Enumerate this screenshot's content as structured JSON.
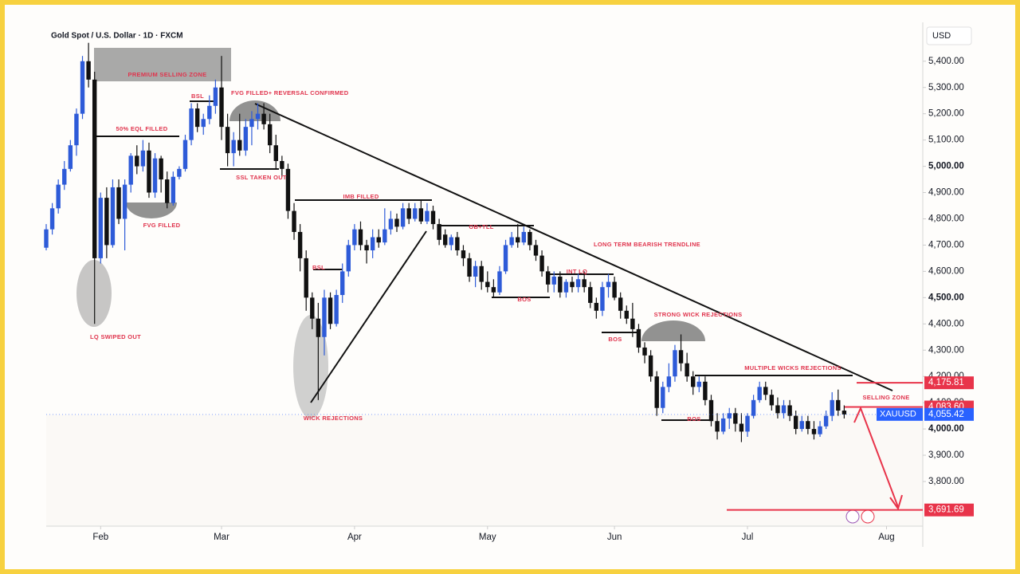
{
  "chart_data": {
    "type": "candlestick",
    "title": "Gold Spot / U.S. Dollar · 1D · FXCM",
    "symbol": "XAUUSD",
    "price_axis_label": "USD",
    "up_color": "#2e5bd8",
    "down_color": "#111111",
    "grid": false,
    "xlim": [
      0,
      145
    ],
    "ylim": [
      3630,
      5545
    ],
    "xticks": [
      {
        "value": 9,
        "label": "Feb"
      },
      {
        "value": 29,
        "label": "Mar"
      },
      {
        "value": 51,
        "label": "Apr"
      },
      {
        "value": 73,
        "label": "May"
      },
      {
        "value": 94,
        "label": "Jun"
      },
      {
        "value": 116,
        "label": "Jul"
      },
      {
        "value": 139,
        "label": "Aug"
      }
    ],
    "yticks": [
      {
        "value": 3800,
        "label": "3,800.00"
      },
      {
        "value": 3900,
        "label": "3,900.00"
      },
      {
        "value": 4000,
        "label": "4,000.00"
      },
      {
        "value": 4100,
        "label": "4,100.00"
      },
      {
        "value": 4200,
        "label": "4,200.00"
      },
      {
        "value": 4300,
        "label": "4,300.00"
      },
      {
        "value": 4400,
        "label": "4,400.00"
      },
      {
        "value": 4500,
        "label": "4,500.00"
      },
      {
        "value": 4600,
        "label": "4,600.00"
      },
      {
        "value": 4700,
        "label": "4,700.00"
      },
      {
        "value": 4800,
        "label": "4,800.00"
      },
      {
        "value": 4900,
        "label": "4,900.00"
      },
      {
        "value": 5000,
        "label": "5,000.00"
      },
      {
        "value": 5100,
        "label": "5,100.00"
      },
      {
        "value": 5200,
        "label": "5,200.00"
      },
      {
        "value": 5300,
        "label": "5,300.00"
      },
      {
        "value": 5400,
        "label": "5,400.00"
      }
    ],
    "price_labels": [
      {
        "value": 4175.81,
        "label": "4,175.81",
        "color": "#e8344a"
      },
      {
        "value": 4083.6,
        "label": "4,083.60",
        "color": "#e8344a"
      },
      {
        "value": 4055.42,
        "label": "4,055.42",
        "color": "#2962ff"
      },
      {
        "value": 3691.69,
        "label": "3,691.69",
        "color": "#e8344a"
      }
    ],
    "annotations": [
      "PREMIUM SELLING ZONE",
      "FVG FILLED+ REVERSAL CONFIRMED",
      "BSL",
      "50% EQL FILLED",
      "FVG FILLED",
      "LQ SWIPED OUT",
      "SSL TAKEN OUT",
      "IMB FILLED",
      "BSL",
      "WICK REJECTIONS",
      "OB+TLL",
      "LONG TERM BEARISH TRENDLINE",
      "INT LQ",
      "BOS",
      "BOS",
      "STRONG WICK REJECTIONS",
      "MULTIPLE WICKS REJECTIONS",
      "BOS",
      "SELLING ZONE"
    ],
    "x": [
      0,
      1,
      2,
      3,
      4,
      5,
      6,
      7,
      8,
      9,
      10,
      11,
      12,
      13,
      14,
      15,
      16,
      17,
      18,
      19,
      20,
      21,
      22,
      23,
      24,
      25,
      26,
      27,
      28,
      29,
      30,
      31,
      32,
      33,
      34,
      35,
      36,
      37,
      38,
      39,
      40,
      41,
      42,
      43,
      44,
      45,
      46,
      47,
      48,
      49,
      50,
      51,
      52,
      53,
      54,
      55,
      56,
      57,
      58,
      59,
      60,
      61,
      62,
      63,
      64,
      65,
      66,
      67,
      68,
      69,
      70,
      71,
      72,
      73,
      74,
      75,
      76,
      77,
      78,
      79,
      80,
      81,
      82,
      83,
      84,
      85,
      86,
      87,
      88,
      89,
      90,
      91,
      92,
      93,
      94,
      95,
      96,
      97,
      98,
      99,
      100,
      101,
      102,
      103,
      104,
      105,
      106,
      107,
      108,
      109,
      110,
      111,
      112,
      113,
      114,
      115,
      116,
      117,
      118,
      119,
      120,
      121,
      122,
      123,
      124,
      125,
      126,
      127,
      128,
      129,
      130,
      131,
      132
    ],
    "ohlc": [
      [
        4690,
        4780,
        4680,
        4760
      ],
      [
        4760,
        4860,
        4740,
        4840
      ],
      [
        4840,
        4950,
        4820,
        4930
      ],
      [
        4930,
        5020,
        4910,
        4990
      ],
      [
        4990,
        5100,
        4980,
        5080
      ],
      [
        5080,
        5220,
        5040,
        5200
      ],
      [
        5200,
        5420,
        5180,
        5400
      ],
      [
        5400,
        5470,
        5300,
        5330
      ],
      [
        5330,
        5360,
        4400,
        4650
      ],
      [
        4650,
        4900,
        4630,
        4880
      ],
      [
        4880,
        4920,
        4650,
        4700
      ],
      [
        4700,
        4950,
        4690,
        4920
      ],
      [
        4920,
        4950,
        4780,
        4800
      ],
      [
        4800,
        4950,
        4680,
        4930
      ],
      [
        4930,
        5050,
        4900,
        5040
      ],
      [
        5040,
        5080,
        4970,
        5000
      ],
      [
        5000,
        5100,
        4980,
        5060
      ],
      [
        5060,
        5090,
        4880,
        4900
      ],
      [
        4900,
        5050,
        4880,
        5030
      ],
      [
        5030,
        5040,
        4900,
        4950
      ],
      [
        4950,
        4980,
        4840,
        4860
      ],
      [
        4860,
        4980,
        4850,
        4960
      ],
      [
        4960,
        5000,
        4950,
        4990
      ],
      [
        4990,
        5120,
        4980,
        5100
      ],
      [
        5100,
        5240,
        5080,
        5220
      ],
      [
        5220,
        5240,
        5130,
        5150
      ],
      [
        5150,
        5200,
        5120,
        5180
      ],
      [
        5180,
        5270,
        5160,
        5230
      ],
      [
        5230,
        5330,
        5200,
        5300
      ],
      [
        5300,
        5420,
        5100,
        5150
      ],
      [
        5150,
        5200,
        5000,
        5050
      ],
      [
        5050,
        5130,
        5000,
        5100
      ],
      [
        5100,
        5200,
        5040,
        5060
      ],
      [
        5060,
        5180,
        5040,
        5150
      ],
      [
        5150,
        5210,
        5080,
        5180
      ],
      [
        5180,
        5240,
        5140,
        5200
      ],
      [
        5200,
        5240,
        5140,
        5160
      ],
      [
        5160,
        5200,
        5050,
        5080
      ],
      [
        5080,
        5120,
        4990,
        5020
      ],
      [
        5020,
        5040,
        4960,
        4990
      ],
      [
        4990,
        5010,
        4800,
        4830
      ],
      [
        4830,
        4860,
        4720,
        4750
      ],
      [
        4750,
        4780,
        4600,
        4650
      ],
      [
        4650,
        4680,
        4450,
        4500
      ],
      [
        4500,
        4520,
        4380,
        4420
      ],
      [
        4420,
        4480,
        4110,
        4350
      ],
      [
        4350,
        4530,
        4280,
        4500
      ],
      [
        4500,
        4520,
        4380,
        4400
      ],
      [
        4400,
        4530,
        4390,
        4510
      ],
      [
        4510,
        4630,
        4480,
        4600
      ],
      [
        4600,
        4720,
        4580,
        4700
      ],
      [
        4700,
        4780,
        4680,
        4760
      ],
      [
        4760,
        4790,
        4680,
        4700
      ],
      [
        4700,
        4720,
        4630,
        4680
      ],
      [
        4680,
        4760,
        4650,
        4730
      ],
      [
        4730,
        4760,
        4690,
        4710
      ],
      [
        4710,
        4840,
        4700,
        4760
      ],
      [
        4760,
        4830,
        4740,
        4800
      ],
      [
        4800,
        4820,
        4750,
        4770
      ],
      [
        4770,
        4860,
        4760,
        4840
      ],
      [
        4840,
        4860,
        4780,
        4800
      ],
      [
        4800,
        4860,
        4790,
        4840
      ],
      [
        4840,
        4870,
        4780,
        4790
      ],
      [
        4790,
        4860,
        4780,
        4830
      ],
      [
        4830,
        4850,
        4760,
        4780
      ],
      [
        4780,
        4800,
        4700,
        4720
      ],
      [
        4740,
        4760,
        4690,
        4700
      ],
      [
        4700,
        4740,
        4680,
        4730
      ],
      [
        4730,
        4750,
        4660,
        4680
      ],
      [
        4680,
        4700,
        4620,
        4650
      ],
      [
        4650,
        4670,
        4560,
        4580
      ],
      [
        4580,
        4640,
        4540,
        4620
      ],
      [
        4620,
        4640,
        4530,
        4560
      ],
      [
        4560,
        4600,
        4520,
        4540
      ],
      [
        4540,
        4570,
        4500,
        4520
      ],
      [
        4520,
        4620,
        4510,
        4600
      ],
      [
        4600,
        4720,
        4590,
        4700
      ],
      [
        4700,
        4750,
        4690,
        4730
      ],
      [
        4730,
        4780,
        4690,
        4710
      ],
      [
        4710,
        4770,
        4700,
        4750
      ],
      [
        4750,
        4760,
        4680,
        4700
      ],
      [
        4700,
        4720,
        4640,
        4660
      ],
      [
        4660,
        4680,
        4580,
        4600
      ],
      [
        4600,
        4620,
        4520,
        4550
      ],
      [
        4550,
        4600,
        4520,
        4580
      ],
      [
        4580,
        4600,
        4500,
        4520
      ],
      [
        4520,
        4570,
        4500,
        4560
      ],
      [
        4560,
        4580,
        4520,
        4540
      ],
      [
        4540,
        4590,
        4520,
        4570
      ],
      [
        4570,
        4600,
        4520,
        4540
      ],
      [
        4540,
        4560,
        4460,
        4480
      ],
      [
        4480,
        4500,
        4420,
        4450
      ],
      [
        4450,
        4560,
        4430,
        4540
      ],
      [
        4540,
        4590,
        4500,
        4560
      ],
      [
        4560,
        4580,
        4490,
        4500
      ],
      [
        4500,
        4520,
        4420,
        4450
      ],
      [
        4450,
        4470,
        4400,
        4420
      ],
      [
        4420,
        4480,
        4350,
        4380
      ],
      [
        4380,
        4400,
        4290,
        4310
      ],
      [
        4310,
        4330,
        4250,
        4280
      ],
      [
        4280,
        4300,
        4180,
        4200
      ],
      [
        4200,
        4220,
        4050,
        4080
      ],
      [
        4080,
        4180,
        4060,
        4160
      ],
      [
        4160,
        4250,
        4140,
        4200
      ],
      [
        4200,
        4320,
        4180,
        4300
      ],
      [
        4300,
        4360,
        4220,
        4250
      ],
      [
        4250,
        4290,
        4180,
        4200
      ],
      [
        4200,
        4220,
        4130,
        4160
      ],
      [
        4160,
        4200,
        4140,
        4180
      ],
      [
        4180,
        4200,
        4090,
        4110
      ],
      [
        4110,
        4130,
        4010,
        4030
      ],
      [
        4030,
        4060,
        3960,
        3990
      ],
      [
        3990,
        4060,
        3980,
        4040
      ],
      [
        4040,
        4080,
        4000,
        4060
      ],
      [
        4060,
        4080,
        3990,
        4020
      ],
      [
        4020,
        4060,
        3950,
        3990
      ],
      [
        3990,
        4060,
        3970,
        4050
      ],
      [
        4050,
        4130,
        4040,
        4110
      ],
      [
        4110,
        4180,
        4100,
        4160
      ],
      [
        4160,
        4180,
        4110,
        4130
      ],
      [
        4130,
        4150,
        4070,
        4090
      ],
      [
        4090,
        4120,
        4040,
        4060
      ],
      [
        4060,
        4110,
        4040,
        4090
      ],
      [
        4090,
        4110,
        4030,
        4050
      ],
      [
        4050,
        4070,
        3980,
        4000
      ],
      [
        4000,
        4050,
        3990,
        4030
      ],
      [
        4030,
        4050,
        3980,
        4000
      ],
      [
        4000,
        4030,
        3960,
        3980
      ],
      [
        3980,
        4030,
        3970,
        4010
      ],
      [
        4010,
        4070,
        4000,
        4050
      ],
      [
        4050,
        4140,
        4030,
        4110
      ],
      [
        4110,
        4150,
        4050,
        4070
      ],
      [
        4070,
        4090,
        4040,
        4055.42
      ]
    ]
  }
}
